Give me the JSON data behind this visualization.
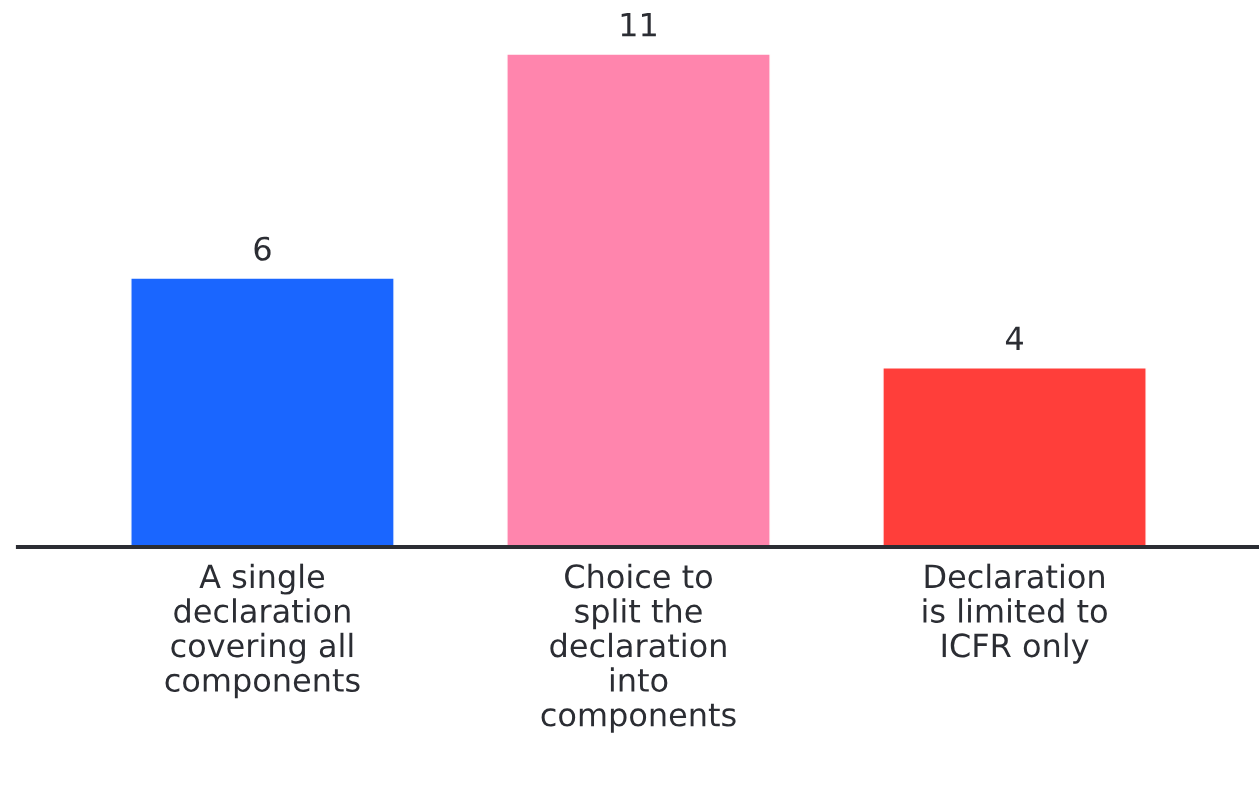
{
  "chart_data": {
    "type": "bar",
    "categories": [
      "A single\ndeclaration\ncovering all\ncomponents",
      "Choice to\nsplit the\ndeclaration\ninto\ncomponents",
      "Declaration\nis limited to\nICFR only"
    ],
    "values": [
      6,
      11,
      4
    ],
    "colors": [
      "#1a66ff",
      "#ff85ad",
      "#ff3e3a"
    ],
    "data_labels": true,
    "grid": false,
    "legend": false
  }
}
